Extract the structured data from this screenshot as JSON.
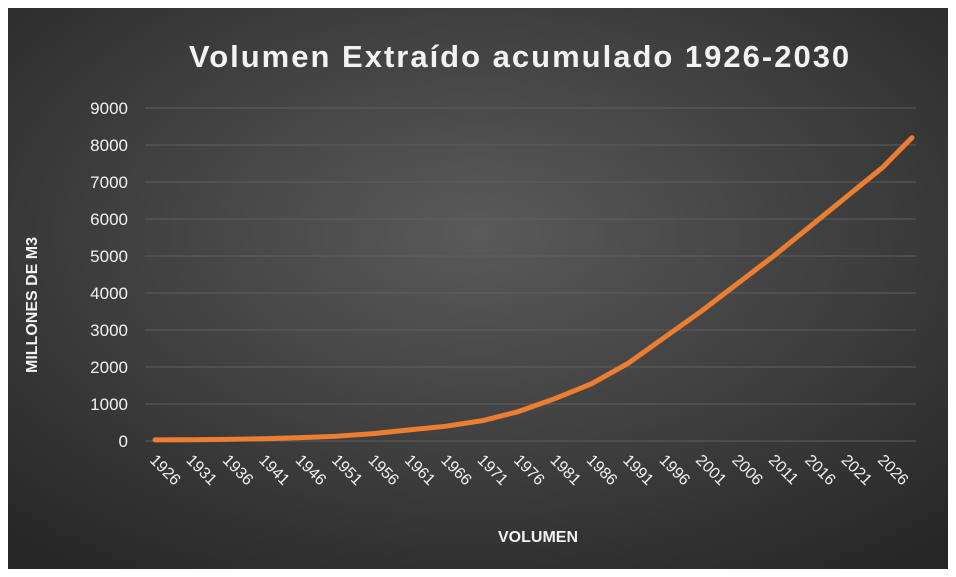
{
  "chart_data": {
    "type": "line",
    "title": "Volumen Extraído acumulado 1926-2030",
    "x_label": "VOLUMEN",
    "y_label": "MILLONES DE M3",
    "x": [
      1926,
      1931,
      1936,
      1941,
      1946,
      1951,
      1956,
      1961,
      1966,
      1971,
      1976,
      1981,
      1986,
      1991,
      1996,
      2001,
      2006,
      2011,
      2016,
      2021,
      2026,
      2030
    ],
    "series": [
      {
        "name": "Volumen",
        "color": "#ed7d31",
        "values": [
          30,
          35,
          45,
          60,
          90,
          130,
          200,
          300,
          400,
          550,
          800,
          1150,
          1550,
          2100,
          2800,
          3500,
          4250,
          5000,
          5800,
          6600,
          7400,
          8200
        ]
      }
    ],
    "xlim": [
      1926,
      2030
    ],
    "xticks": [
      1926,
      1931,
      1936,
      1941,
      1946,
      1951,
      1956,
      1961,
      1966,
      1971,
      1976,
      1981,
      1986,
      1991,
      1996,
      2001,
      2006,
      2011,
      2016,
      2021,
      2026
    ],
    "ylim": [
      0,
      9000
    ],
    "yticks": [
      0,
      1000,
      2000,
      3000,
      4000,
      5000,
      6000,
      7000,
      8000,
      9000
    ],
    "grid": true
  }
}
